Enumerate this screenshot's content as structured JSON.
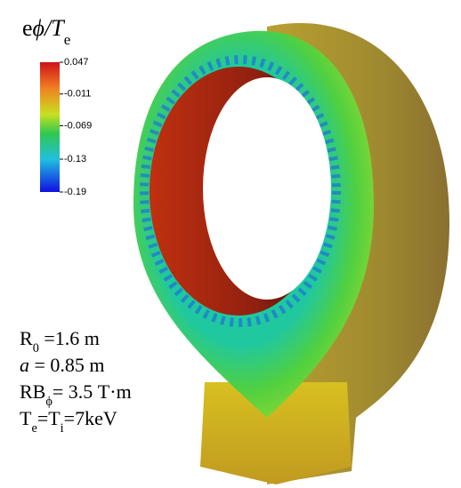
{
  "title": [
    {
      "text": "e"
    },
    {
      "text": "ϕ/T",
      "style": "italic"
    },
    {
      "text": "e",
      "style": "sub"
    }
  ],
  "colorbar": {
    "ticks": [
      0.047,
      -0.011,
      -0.069,
      -0.13,
      -0.19
    ]
  },
  "parameters": [
    [
      {
        "text": "R"
      },
      {
        "text": "0",
        "style": "sub"
      },
      {
        "text": " =1.6 m"
      }
    ],
    [
      {
        "text": "a",
        "style": "italic"
      },
      {
        "text": " = 0.85 m"
      }
    ],
    [
      {
        "text": "RB"
      },
      {
        "text": "ϕ",
        "style": "sub"
      },
      {
        "text": "= 3.5 T·m"
      }
    ],
    [
      {
        "text": "T"
      },
      {
        "text": "e",
        "style": "sub"
      },
      {
        "text": "=T"
      },
      {
        "text": "i",
        "style": "sub"
      },
      {
        "text": "=7keV"
      }
    ]
  ]
}
